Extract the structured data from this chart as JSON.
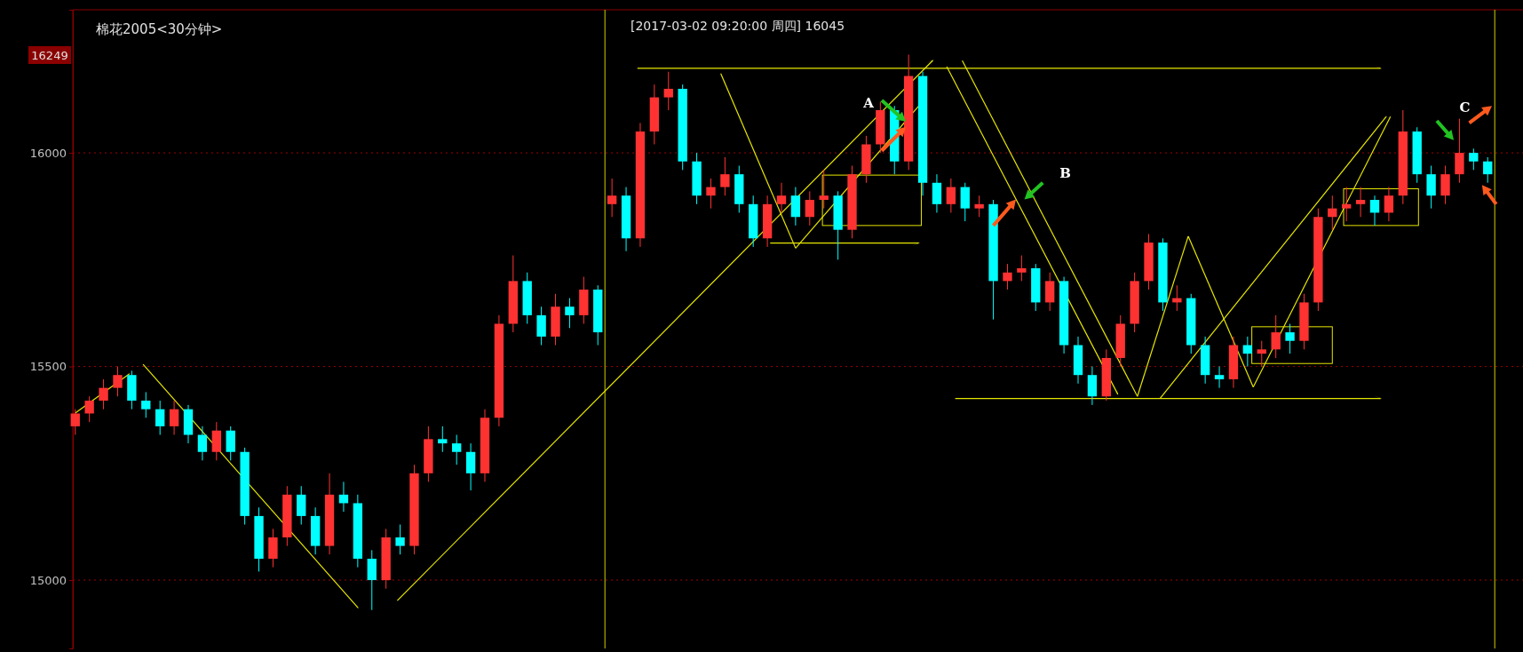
{
  "chart_data": {
    "type": "candlestick",
    "title": "棉花2005<30分钟>",
    "annotations": [
      "[2017-03-02  09:20:00 周四]   16045",
      "16249",
      "A",
      "B",
      "C"
    ],
    "categories": [
      null,
      null,
      null,
      null,
      null,
      null,
      null,
      null,
      null,
      null,
      null,
      null,
      null,
      null,
      null,
      null,
      null,
      null,
      null,
      null,
      null,
      null,
      null,
      null,
      null,
      null,
      null,
      null,
      null,
      null,
      null,
      null,
      null,
      null,
      null,
      null,
      null,
      null,
      null,
      null,
      null,
      null,
      null,
      null,
      null,
      null,
      null,
      null,
      null,
      null,
      null,
      null,
      null,
      null,
      null,
      null,
      null,
      null,
      null,
      null,
      null,
      null,
      null,
      null,
      null,
      null,
      null,
      null,
      null,
      null,
      null,
      null,
      null,
      null,
      null,
      null,
      null,
      null,
      null,
      null,
      null,
      null,
      null,
      null,
      null,
      null,
      null,
      null,
      null,
      null,
      null,
      null,
      null,
      null,
      null,
      null,
      null,
      null,
      null,
      null,
      null
    ],
    "ohlc": [
      [
        15360,
        15400,
        15340,
        15390
      ],
      [
        15390,
        15430,
        15370,
        15420
      ],
      [
        15420,
        15470,
        15400,
        15450
      ],
      [
        15450,
        15500,
        15430,
        15480
      ],
      [
        15480,
        15490,
        15400,
        15420
      ],
      [
        15420,
        15440,
        15380,
        15400
      ],
      [
        15400,
        15420,
        15340,
        15360
      ],
      [
        15360,
        15420,
        15340,
        15400
      ],
      [
        15400,
        15410,
        15320,
        15340
      ],
      [
        15340,
        15360,
        15280,
        15300
      ],
      [
        15300,
        15370,
        15280,
        15350
      ],
      [
        15350,
        15360,
        15280,
        15300
      ],
      [
        15300,
        15310,
        15130,
        15150
      ],
      [
        15150,
        15170,
        15020,
        15050
      ],
      [
        15050,
        15120,
        15030,
        15100
      ],
      [
        15100,
        15220,
        15080,
        15200
      ],
      [
        15200,
        15220,
        15130,
        15150
      ],
      [
        15150,
        15170,
        15060,
        15080
      ],
      [
        15080,
        15250,
        15060,
        15200
      ],
      [
        15200,
        15230,
        15160,
        15180
      ],
      [
        15180,
        15200,
        15030,
        15050
      ],
      [
        15050,
        15070,
        14930,
        15000
      ],
      [
        15000,
        15120,
        14980,
        15100
      ],
      [
        15100,
        15130,
        15060,
        15080
      ],
      [
        15080,
        15270,
        15060,
        15250
      ],
      [
        15250,
        15360,
        15230,
        15330
      ],
      [
        15330,
        15360,
        15300,
        15320
      ],
      [
        15320,
        15340,
        15270,
        15300
      ],
      [
        15300,
        15320,
        15210,
        15250
      ],
      [
        15250,
        15400,
        15230,
        15380
      ],
      [
        15380,
        15620,
        15360,
        15600
      ],
      [
        15600,
        15760,
        15580,
        15700
      ],
      [
        15700,
        15720,
        15600,
        15620
      ],
      [
        15620,
        15640,
        15550,
        15570
      ],
      [
        15570,
        15670,
        15550,
        15640
      ],
      [
        15640,
        15660,
        15590,
        15620
      ],
      [
        15620,
        15710,
        15600,
        15680
      ],
      [
        15680,
        15690,
        15550,
        15580
      ],
      [
        15880,
        15940,
        15850,
        15900
      ],
      [
        15900,
        15920,
        15770,
        15800
      ],
      [
        15800,
        16070,
        15780,
        16050
      ],
      [
        16050,
        16160,
        16020,
        16130
      ],
      [
        16130,
        16190,
        16100,
        16150
      ],
      [
        16150,
        16160,
        15960,
        15980
      ],
      [
        15980,
        16000,
        15880,
        15900
      ],
      [
        15900,
        15940,
        15870,
        15920
      ],
      [
        15920,
        15990,
        15900,
        15950
      ],
      [
        15950,
        15970,
        15860,
        15880
      ],
      [
        15880,
        15900,
        15780,
        15800
      ],
      [
        15800,
        15900,
        15780,
        15880
      ],
      [
        15880,
        15930,
        15860,
        15900
      ],
      [
        15900,
        15920,
        15830,
        15850
      ],
      [
        15850,
        15910,
        15830,
        15890
      ],
      [
        15890,
        15960,
        15870,
        15900
      ],
      [
        15900,
        15910,
        15750,
        15820
      ],
      [
        15820,
        15970,
        15800,
        15950
      ],
      [
        15950,
        16040,
        15930,
        16020
      ],
      [
        16020,
        16120,
        16000,
        16100
      ],
      [
        16100,
        16110,
        15950,
        15980
      ],
      [
        15980,
        16230,
        15960,
        16180
      ],
      [
        16180,
        16190,
        15900,
        15930
      ],
      [
        15930,
        15950,
        15860,
        15880
      ],
      [
        15880,
        15940,
        15860,
        15920
      ],
      [
        15920,
        15930,
        15840,
        15870
      ],
      [
        15870,
        15900,
        15850,
        15880
      ],
      [
        15880,
        15890,
        15610,
        15700
      ],
      [
        15700,
        15740,
        15680,
        15720
      ],
      [
        15720,
        15760,
        15700,
        15730
      ],
      [
        15730,
        15740,
        15630,
        15650
      ],
      [
        15650,
        15720,
        15630,
        15700
      ],
      [
        15700,
        15710,
        15530,
        15550
      ],
      [
        15550,
        15570,
        15460,
        15480
      ],
      [
        15480,
        15500,
        15410,
        15430
      ],
      [
        15430,
        15540,
        15420,
        15520
      ],
      [
        15520,
        15620,
        15500,
        15600
      ],
      [
        15600,
        15720,
        15580,
        15700
      ],
      [
        15700,
        15810,
        15680,
        15790
      ],
      [
        15790,
        15800,
        15630,
        15650
      ],
      [
        15650,
        15690,
        15630,
        15660
      ],
      [
        15660,
        15670,
        15530,
        15550
      ],
      [
        15550,
        15570,
        15460,
        15480
      ],
      [
        15480,
        15500,
        15450,
        15470
      ],
      [
        15470,
        15570,
        15450,
        15550
      ],
      [
        15550,
        15570,
        15500,
        15530
      ],
      [
        15530,
        15560,
        15500,
        15540
      ],
      [
        15540,
        15620,
        15520,
        15580
      ],
      [
        15580,
        15600,
        15530,
        15560
      ],
      [
        15560,
        15670,
        15540,
        15650
      ],
      [
        15650,
        15870,
        15630,
        15850
      ],
      [
        15850,
        15900,
        15820,
        15870
      ],
      [
        15870,
        15920,
        15840,
        15880
      ],
      [
        15880,
        15920,
        15850,
        15890
      ],
      [
        15890,
        15900,
        15830,
        15860
      ],
      [
        15860,
        15920,
        15840,
        15900
      ],
      [
        15900,
        16100,
        15880,
        16050
      ],
      [
        16050,
        16060,
        15930,
        15950
      ],
      [
        15950,
        15970,
        15870,
        15900
      ],
      [
        15900,
        15970,
        15880,
        15950
      ],
      [
        15950,
        16080,
        15930,
        16000
      ],
      [
        16000,
        16010,
        15960,
        15980
      ],
      [
        15980,
        15990,
        15930,
        15950
      ]
    ],
    "colors": [
      "#ff3232",
      "#ff3232",
      "#ff3232",
      "#ff3232",
      "#00ffff",
      "#00ffff",
      "#00ffff",
      "#ff3232",
      "#00ffff",
      "#00ffff",
      "#ff3232",
      "#00ffff",
      "#00ffff",
      "#00ffff",
      "#ff3232",
      "#ff3232",
      "#00ffff",
      "#00ffff",
      "#ff3232",
      "#00ffff",
      "#00ffff",
      "#00ffff",
      "#ff3232",
      "#00ffff",
      "#ff3232",
      "#ff3232",
      "#00ffff",
      "#00ffff",
      "#00ffff",
      "#ff3232",
      "#ff3232",
      "#ff3232",
      "#00ffff",
      "#00ffff",
      "#ff3232",
      "#00ffff",
      "#ff3232",
      "#00ffff",
      "#ff3232",
      "#00ffff",
      "#ff3232",
      "#ff3232",
      "#ff3232",
      "#00ffff",
      "#00ffff",
      "#ff3232",
      "#ff3232",
      "#00ffff",
      "#00ffff",
      "#ff3232",
      "#ff3232",
      "#00ffff",
      "#ff3232",
      "#ff3232",
      "#00ffff",
      "#ff3232",
      "#ff3232",
      "#ff3232",
      "#00ffff",
      "#ff3232",
      "#00ffff",
      "#00ffff",
      "#ff3232",
      "#00ffff",
      "#ff3232",
      "#00ffff",
      "#ff3232",
      "#ff3232",
      "#00ffff",
      "#ff3232",
      "#00ffff",
      "#00ffff",
      "#00ffff",
      "#ff3232",
      "#ff3232",
      "#ff3232",
      "#ff3232",
      "#00ffff",
      "#ff3232",
      "#00ffff",
      "#00ffff",
      "#00ffff",
      "#ff3232",
      "#00ffff",
      "#ff3232",
      "#ff3232",
      "#00ffff",
      "#ff3232",
      "#ff3232",
      "#ff3232",
      "#ff3232",
      "#ff3232",
      "#00ffff",
      "#ff3232",
      "#ff3232",
      "#00ffff",
      "#00ffff",
      "#ff3232",
      "#ff3232",
      "#00ffff",
      "#00ffff"
    ],
    "ylim": [
      14840,
      16335
    ],
    "yticks": [
      15000,
      15500,
      16000
    ],
    "grid": "y"
  }
}
